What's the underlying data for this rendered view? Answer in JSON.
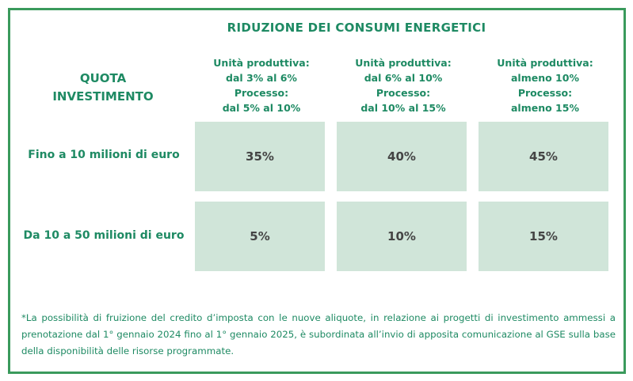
{
  "title": "RIDUZIONE DEI CONSUMI ENERGETICI",
  "quota_label": [
    "QUOTA",
    "INVESTIMENTO"
  ],
  "columns": [
    {
      "lines": [
        "Unità produttiva:",
        "dal 3% al 6%",
        "Processo:",
        "dal 5% al 10%"
      ]
    },
    {
      "lines": [
        "Unità produttiva:",
        "dal 6% al 10%",
        "Processo:",
        "dal 10% al 15%"
      ]
    },
    {
      "lines": [
        "Unità produttiva:",
        "almeno 10%",
        "Processo:",
        "almeno 15%"
      ]
    }
  ],
  "rows": [
    {
      "label": "Fino a 10 milioni di euro",
      "values": [
        "35%",
        "40%",
        "45%"
      ]
    },
    {
      "label": "Da 10 a 50 milioni di euro",
      "values": [
        "5%",
        "10%",
        "15%"
      ]
    }
  ],
  "footnote": "*La possibilità di fruizione del credito d’imposta con le nuove aliquote, in relazione ai progetti di investimento ammessi a prenotazione dal 1° gennaio 2024 fino al 1° gennaio 2025, è subordinata all’invio di apposita comunicazione al GSE sulla base della disponibilità delle risorse programmate.",
  "colors": {
    "accent": "#1e8a63",
    "border": "#3a9a5c",
    "cell": "#d0e5d9"
  }
}
